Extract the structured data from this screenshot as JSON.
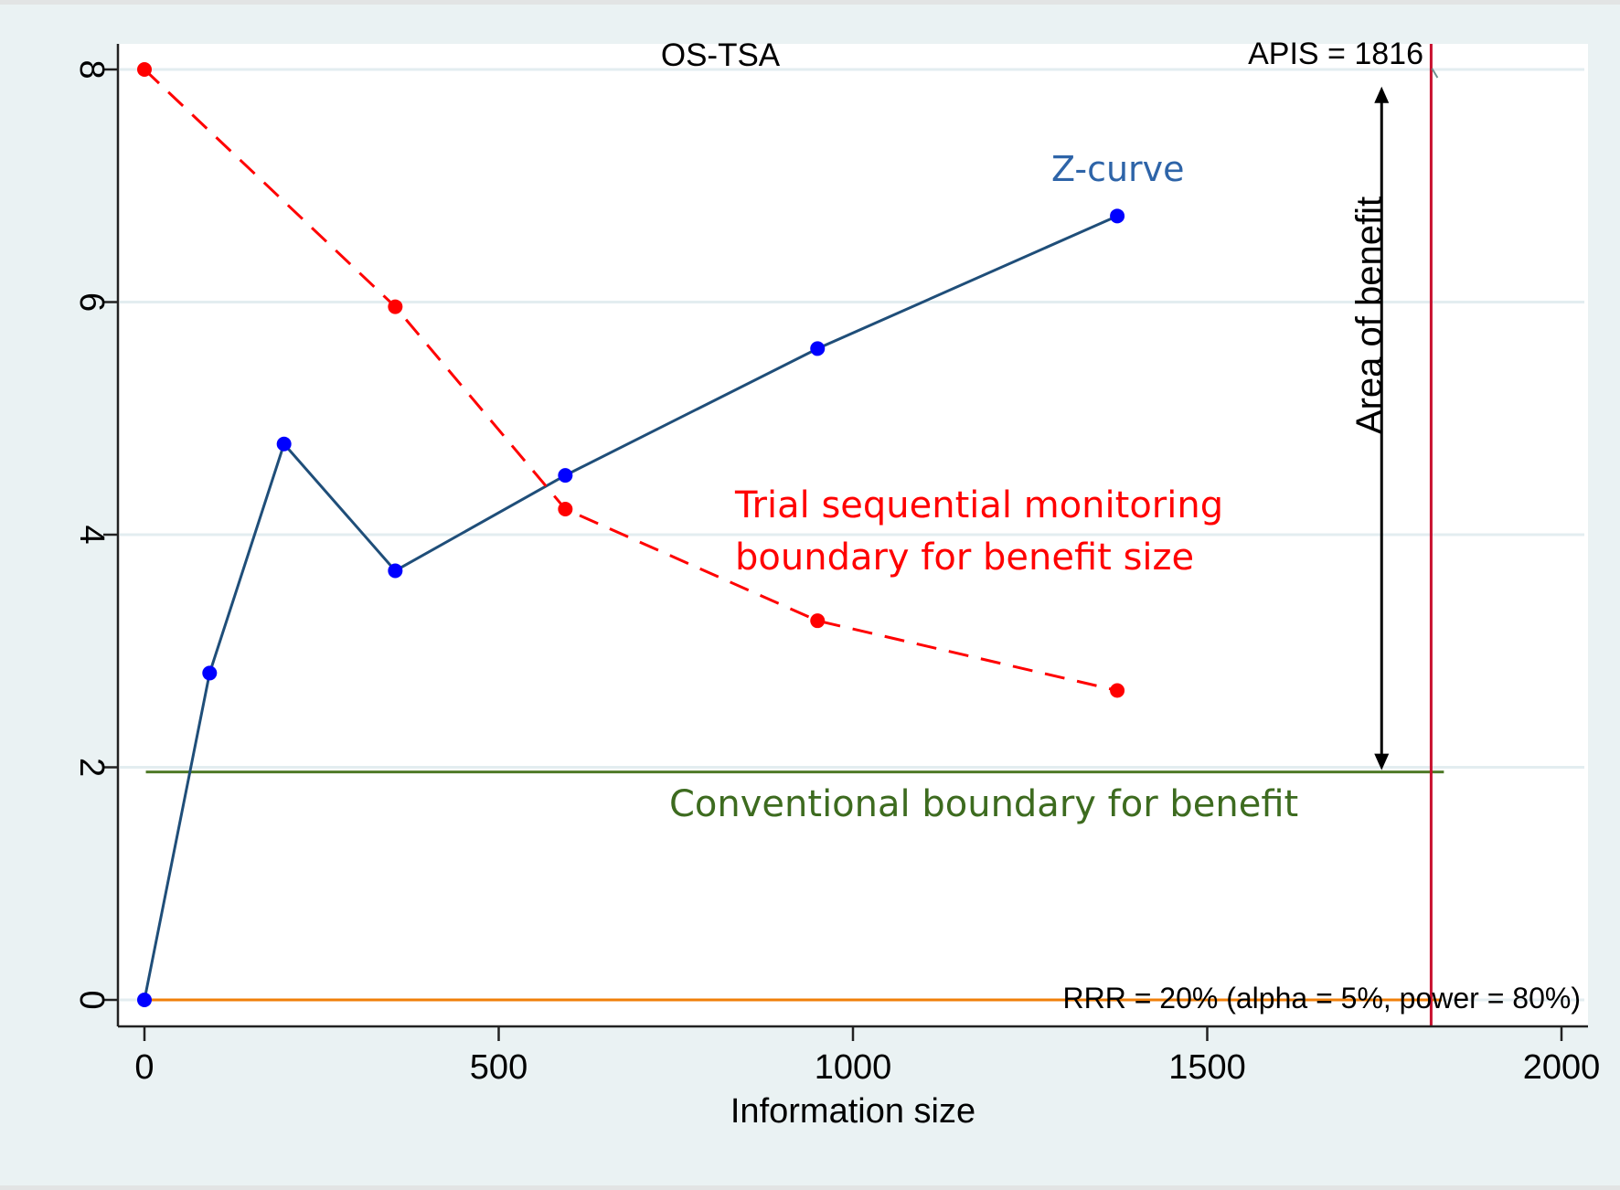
{
  "chart_data": {
    "type": "line",
    "title": "OS-TSA",
    "xlabel": "Information size",
    "ylabel": "",
    "xlim": [
      -30,
      2040
    ],
    "ylim": [
      -0.25,
      8.2
    ],
    "x_ticks": [
      0,
      500,
      1000,
      1500,
      2000
    ],
    "x_tick_labels": [
      "0",
      "500",
      "1000",
      "1500",
      "2000"
    ],
    "y_ticks": [
      0,
      2,
      4,
      6,
      8
    ],
    "y_tick_labels": [
      "0",
      "2",
      "4",
      "6",
      "8"
    ],
    "grid": true,
    "series": [
      {
        "name": "Z-curve",
        "style": "solid",
        "color": "#1f4e79",
        "marker_color": "#0000ff",
        "x": [
          0,
          92,
          197,
          354,
          594,
          950,
          1373
        ],
        "y": [
          0,
          2.81,
          4.78,
          3.69,
          4.51,
          5.6,
          6.74
        ]
      },
      {
        "name": "Trial sequential monitoring boundary for benefit size",
        "style": "dashed",
        "color": "#ff0000",
        "marker_color": "#ff0000",
        "x": [
          0,
          354,
          594,
          950,
          1373
        ],
        "y": [
          8,
          5.96,
          4.22,
          3.26,
          2.66
        ]
      }
    ],
    "reference_lines": {
      "conventional_boundary": {
        "y": 1.96,
        "x_from": 2,
        "x_to": 1834,
        "color": "#4f7a28"
      },
      "zero_line": {
        "y": 0,
        "x_from": 0,
        "x_to": 1831,
        "color": "#f07f09"
      },
      "apis_line": {
        "x": 1816,
        "color": "#c8102e"
      }
    },
    "area_arrow": {
      "x": 1790,
      "y_from": 1.96,
      "y_to": 7.9
    },
    "annotations": {
      "title": "OS-TSA",
      "apis": "APIS = 1816",
      "zcurve": "Z-curve",
      "tsmb_line1": "Trial sequential monitoring",
      "tsmb_line2": "boundary for benefit size",
      "conventional": "Conventional boundary for benefit",
      "area": "Area of benefit",
      "rrr": "RRR = 20% (alpha = 5%, power = 80%)"
    },
    "colors": {
      "zcurve_label": "#2e64a8",
      "tsmb_label": "#ff0000",
      "conventional_label": "#3d6b1f",
      "apis_label": "#7a9e9e"
    }
  }
}
